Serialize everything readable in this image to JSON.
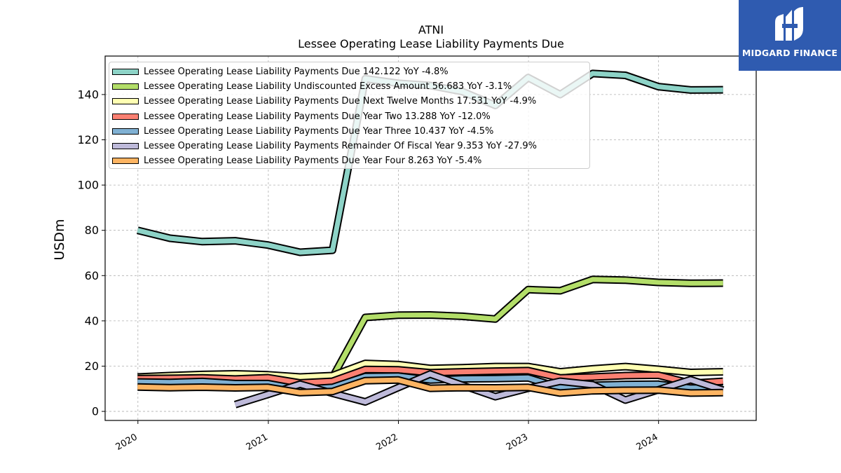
{
  "logo": {
    "text": "MIDGARD FINANCE",
    "background": "#2f5bb0"
  },
  "chart_data": {
    "type": "line",
    "title": "ATNI",
    "subtitle": "Lessee Operating Lease Liability Payments Due",
    "xlabel": "",
    "ylabel": "USDm",
    "ylim": [
      -4,
      157
    ],
    "xlim": [
      "2019-10-01",
      "2024-10-01"
    ],
    "yticks": [
      0,
      20,
      40,
      60,
      80,
      100,
      120,
      140
    ],
    "xticks": [
      "2020",
      "2021",
      "2022",
      "2023",
      "2024"
    ],
    "grid": true,
    "legend_position": "top-left",
    "series": [
      {
        "name": "Lessee Operating Lease Liability Payments Due  142.122 YoY -4.8%",
        "color": "#8dd3c7",
        "x": [
          "2019-12-31",
          "2020-03-31",
          "2020-06-30",
          "2020-09-30",
          "2020-12-31",
          "2021-03-31",
          "2021-06-30",
          "2021-09-30",
          "2021-12-31",
          "2022-03-31",
          "2022-06-30",
          "2022-09-30",
          "2022-12-31",
          "2023-03-31",
          "2023-06-30",
          "2023-09-30",
          "2023-12-31",
          "2024-03-31",
          "2024-06-30"
        ],
        "y": [
          80,
          76.5,
          75,
          75.4,
          73.5,
          70.3,
          71.2,
          147,
          145,
          144,
          141.3,
          135.2,
          147.5,
          140,
          149.3,
          148.5,
          143.5,
          142,
          142.1
        ]
      },
      {
        "name": "Lessee Operating Lease Liability Undiscounted Excess Amount  56.683 YoY -3.1%",
        "color": "#b3de69",
        "x": [
          "2021-06-30",
          "2021-09-30",
          "2021-12-31",
          "2022-03-31",
          "2022-06-30",
          "2022-09-30",
          "2022-12-31",
          "2023-03-31",
          "2023-06-30",
          "2023-09-30",
          "2023-12-31",
          "2024-03-31",
          "2024-06-30"
        ],
        "y": [
          15,
          41.5,
          42.5,
          42.6,
          42,
          40.8,
          53.8,
          53.3,
          58.3,
          58,
          57,
          56.6,
          56.7
        ]
      },
      {
        "name": "Lessee Operating Lease Liability Payments Due Next Twelve Months  17.531 YoY -4.9%",
        "color": "#ffffb3",
        "x": [
          "2019-12-31",
          "2020-03-31",
          "2020-06-30",
          "2020-09-30",
          "2020-12-31",
          "2021-03-31",
          "2021-06-30",
          "2021-09-30",
          "2021-12-31",
          "2022-03-31",
          "2022-06-30",
          "2022-09-30",
          "2022-12-31",
          "2023-03-31",
          "2023-06-30",
          "2023-09-30",
          "2023-12-31",
          "2024-03-31",
          "2024-06-30"
        ],
        "y": [
          15.2,
          15.8,
          16.3,
          16.6,
          16.2,
          15.2,
          15.8,
          21.2,
          20.7,
          19,
          19.3,
          19.8,
          19.8,
          17.5,
          18.8,
          19.8,
          18.6,
          17.2,
          17.5
        ]
      },
      {
        "name": "Lessee Operating Lease Liability Payments Due Year Two  13.288 YoY -12.0%",
        "color": "#fb8072",
        "x": [
          "2019-12-31",
          "2020-03-31",
          "2020-06-30",
          "2020-09-30",
          "2020-12-31",
          "2021-03-31",
          "2021-06-30",
          "2021-09-30",
          "2021-12-31",
          "2022-03-31",
          "2022-06-30",
          "2022-09-30",
          "2022-12-31",
          "2023-03-31",
          "2023-06-30",
          "2023-09-30",
          "2023-12-31",
          "2024-03-31",
          "2024-06-30"
        ],
        "y": [
          14.5,
          14.6,
          14.8,
          14.3,
          14.9,
          12.6,
          13.3,
          18.5,
          18.4,
          17.1,
          17.5,
          17.8,
          18,
          14.8,
          15.2,
          15.8,
          16,
          12.4,
          13.3
        ]
      },
      {
        "name": "Lessee Operating Lease Liability Payments Due Year Three  10.437 YoY -4.5%",
        "color": "#80b1d3",
        "x": [
          "2019-12-31",
          "2020-03-31",
          "2020-06-30",
          "2020-09-30",
          "2020-12-31",
          "2021-03-31",
          "2021-06-30",
          "2021-09-30",
          "2021-12-31",
          "2022-03-31",
          "2022-06-30",
          "2022-09-30",
          "2022-12-31",
          "2023-03-31",
          "2023-06-30",
          "2023-09-30",
          "2023-12-31",
          "2024-03-31",
          "2024-06-30"
        ],
        "y": [
          13,
          12.8,
          13.2,
          12.3,
          12.3,
          9.7,
          10.6,
          15.4,
          15.6,
          13.9,
          14.4,
          14.5,
          14.8,
          10.5,
          11.5,
          11.9,
          12,
          10.3,
          10.4
        ]
      },
      {
        "name": "Lessee Operating Lease Liability Payments Remainder Of Fiscal Year  9.353 YoY -27.9%",
        "color": "#bebada",
        "x": [
          "2020-09-30",
          "2020-12-31",
          "2021-03-31",
          "2021-06-30",
          "2021-09-30",
          "2021-12-31",
          "2022-03-31",
          "2022-06-30",
          "2022-09-30",
          "2022-12-31",
          "2023-03-31",
          "2023-06-30",
          "2023-09-30",
          "2023-12-31",
          "2024-03-31",
          "2024-06-30"
        ],
        "y": [
          3,
          7.5,
          12,
          8,
          4.2,
          10.5,
          16.5,
          11.5,
          6.5,
          10.2,
          13.3,
          11.8,
          5,
          9.5,
          14,
          9.4
        ]
      },
      {
        "name": "Lessee Operating Lease Liability Payments Due Year Four  8.263 YoY -5.4%",
        "color": "#fdb462",
        "x": [
          "2019-12-31",
          "2020-03-31",
          "2020-06-30",
          "2020-09-30",
          "2020-12-31",
          "2021-03-31",
          "2021-06-30",
          "2021-09-30",
          "2021-12-31",
          "2022-03-31",
          "2022-06-30",
          "2022-09-30",
          "2022-12-31",
          "2023-03-31",
          "2023-06-30",
          "2023-09-30",
          "2023-12-31",
          "2024-03-31",
          "2024-06-30"
        ],
        "y": [
          10.8,
          10.5,
          10.7,
          10.4,
          10.6,
          8.3,
          8.8,
          13.6,
          13.9,
          10.2,
          10.5,
          10.4,
          10.6,
          8.1,
          9.1,
          9.3,
          9.4,
          8.1,
          8.3
        ]
      }
    ]
  }
}
